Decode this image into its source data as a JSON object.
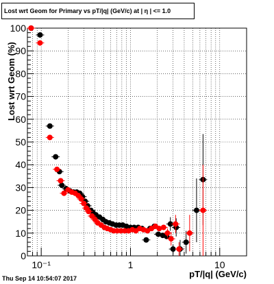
{
  "title": "Lost wrt Geom for Primary vs pT/|q| (GeV/c) at |  η | <= 1.0",
  "timestamp": "Thu Sep 14 10:54:07 2017",
  "chart_data": {
    "type": "scatter",
    "xlabel": "pT/|q| (GeV/c)",
    "ylabel": "Lost wrt Geom (%)",
    "x_scale": "log",
    "xlim": [
      0.07,
      20
    ],
    "ylim": [
      0,
      100
    ],
    "x_tick_labels": [
      "10⁻¹",
      "1",
      "10"
    ],
    "x_tick_values": [
      0.1,
      1,
      10
    ],
    "y_tick_labels": [
      "0",
      "10",
      "20",
      "30",
      "40",
      "50",
      "60",
      "70",
      "80",
      "90",
      "100"
    ],
    "y_tick_values": [
      0,
      10,
      20,
      30,
      40,
      50,
      60,
      70,
      80,
      90,
      100
    ],
    "grid": true,
    "series": [
      {
        "color": "#000000",
        "points": [
          [
            0.077,
            100,
            0
          ],
          [
            0.097,
            97,
            0
          ],
          [
            0.125,
            57,
            0
          ],
          [
            0.145,
            43.5,
            0
          ],
          [
            0.16,
            37,
            0
          ],
          [
            0.17,
            31,
            0
          ],
          [
            0.19,
            29.5,
            0
          ],
          [
            0.21,
            28.5,
            0
          ],
          [
            0.23,
            28,
            0
          ],
          [
            0.25,
            28,
            0
          ],
          [
            0.27,
            27.5,
            0
          ],
          [
            0.29,
            26,
            0
          ],
          [
            0.31,
            24,
            0
          ],
          [
            0.33,
            22,
            0
          ],
          [
            0.36,
            20,
            0
          ],
          [
            0.38,
            19,
            0
          ],
          [
            0.41,
            18,
            0
          ],
          [
            0.45,
            17,
            0
          ],
          [
            0.49,
            16,
            0
          ],
          [
            0.53,
            15,
            0
          ],
          [
            0.58,
            14.5,
            0
          ],
          [
            0.63,
            14,
            0
          ],
          [
            0.69,
            13.5,
            0
          ],
          [
            0.75,
            13.5,
            0
          ],
          [
            0.82,
            13.5,
            0
          ],
          [
            0.9,
            13,
            0
          ],
          [
            1.0,
            12.5,
            0
          ],
          [
            1.1,
            12.5,
            0
          ],
          [
            1.22,
            12.5,
            0
          ],
          [
            1.35,
            12,
            0
          ],
          [
            1.5,
            7,
            0
          ],
          [
            1.65,
            12,
            0
          ],
          [
            1.85,
            13,
            0
          ],
          [
            2.05,
            9.5,
            0
          ],
          [
            2.3,
            9,
            0
          ],
          [
            2.55,
            8.5,
            0
          ],
          [
            2.8,
            14,
            3
          ],
          [
            3.0,
            3,
            2
          ],
          [
            3.25,
            12.5,
            4
          ],
          [
            3.6,
            3,
            4
          ],
          [
            4.2,
            6,
            5
          ],
          [
            5.5,
            20,
            14
          ],
          [
            6.5,
            33.5,
            20
          ]
        ]
      },
      {
        "color": "#ff0000",
        "points": [
          [
            0.077,
            100,
            0
          ],
          [
            0.097,
            93.5,
            0
          ],
          [
            0.125,
            52,
            0
          ],
          [
            0.15,
            38,
            0
          ],
          [
            0.165,
            33,
            0
          ],
          [
            0.18,
            27.5,
            0
          ],
          [
            0.2,
            29,
            0
          ],
          [
            0.22,
            28,
            0
          ],
          [
            0.24,
            27.5,
            0
          ],
          [
            0.26,
            26.5,
            0
          ],
          [
            0.28,
            25,
            0
          ],
          [
            0.3,
            23,
            0
          ],
          [
            0.32,
            21,
            0
          ],
          [
            0.34,
            19.5,
            0
          ],
          [
            0.37,
            17.5,
            0
          ],
          [
            0.4,
            16,
            0
          ],
          [
            0.43,
            14.5,
            0
          ],
          [
            0.47,
            13.5,
            0
          ],
          [
            0.51,
            12.5,
            0
          ],
          [
            0.55,
            12,
            0
          ],
          [
            0.6,
            11.5,
            0
          ],
          [
            0.65,
            11,
            0
          ],
          [
            0.71,
            11,
            0
          ],
          [
            0.78,
            11,
            0
          ],
          [
            0.86,
            11,
            0
          ],
          [
            0.95,
            11,
            0
          ],
          [
            1.05,
            11.5,
            0
          ],
          [
            1.15,
            11,
            0
          ],
          [
            1.27,
            12,
            0
          ],
          [
            1.4,
            11.5,
            0
          ],
          [
            1.55,
            11,
            0
          ],
          [
            1.72,
            12,
            0
          ],
          [
            1.9,
            13,
            0
          ],
          [
            2.1,
            12,
            0
          ],
          [
            2.35,
            12.5,
            0
          ],
          [
            2.6,
            10,
            2
          ],
          [
            2.85,
            7.5,
            3
          ],
          [
            3.2,
            14,
            4
          ],
          [
            3.5,
            3,
            3
          ],
          [
            4.6,
            10,
            8
          ],
          [
            6.5,
            20,
            20
          ]
        ]
      }
    ]
  }
}
